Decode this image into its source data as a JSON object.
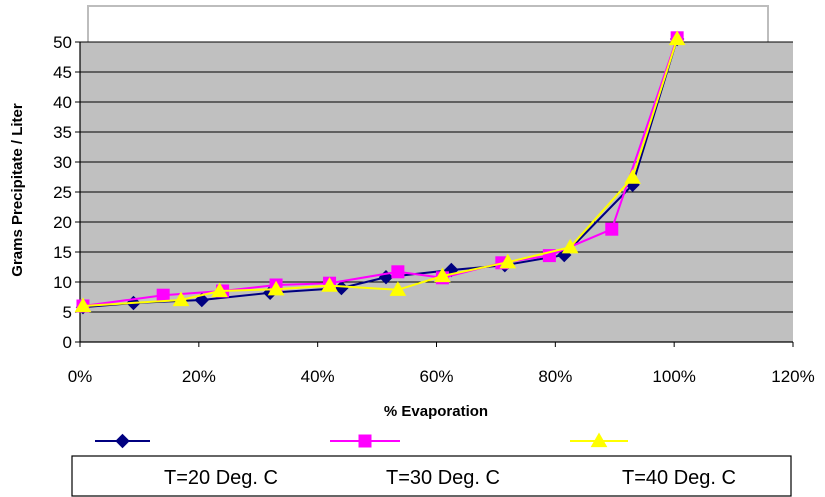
{
  "chart_data": {
    "type": "line",
    "title": "",
    "xlabel": "% Evaporation",
    "ylabel": "Grams Precipitate / Liter",
    "xlim": [
      0,
      120
    ],
    "ylim": [
      0,
      50
    ],
    "x_ticks": [
      "0%",
      "20%",
      "40%",
      "60%",
      "80%",
      "100%",
      "120%"
    ],
    "y_ticks": [
      "0",
      "5",
      "10",
      "15",
      "20",
      "25",
      "30",
      "35",
      "40",
      "45",
      "50"
    ],
    "grid": true,
    "legend_position": "bottom",
    "series": [
      {
        "name": "T=20 Deg. C",
        "color": "#000080",
        "marker": "diamond",
        "x": [
          0.5,
          9,
          20.5,
          32,
          44,
          51.5,
          62.5,
          71.5,
          81.5,
          93,
          100.5
        ],
        "y": [
          5.8,
          6.5,
          7.0,
          8.2,
          9.0,
          10.8,
          12.0,
          12.8,
          14.5,
          26.2,
          50.5
        ]
      },
      {
        "name": "T=30 Deg. C",
        "color": "#FF00FF",
        "marker": "square",
        "x": [
          0.5,
          14,
          24,
          33,
          42,
          53.5,
          61,
          71,
          79,
          89.5,
          100.5
        ],
        "y": [
          6.0,
          7.8,
          8.5,
          9.5,
          9.8,
          11.7,
          10.7,
          13.2,
          14.4,
          18.8,
          50.7
        ]
      },
      {
        "name": "T=40 Deg. C",
        "color": "#FFFF00",
        "marker": "triangle",
        "x": [
          0.5,
          17,
          23.5,
          33,
          42,
          53.5,
          61,
          72,
          82.5,
          93,
          100.5
        ],
        "y": [
          6.0,
          7.0,
          8.5,
          8.8,
          9.4,
          8.7,
          11.0,
          13.3,
          15.8,
          27.4,
          50.5
        ]
      }
    ]
  }
}
